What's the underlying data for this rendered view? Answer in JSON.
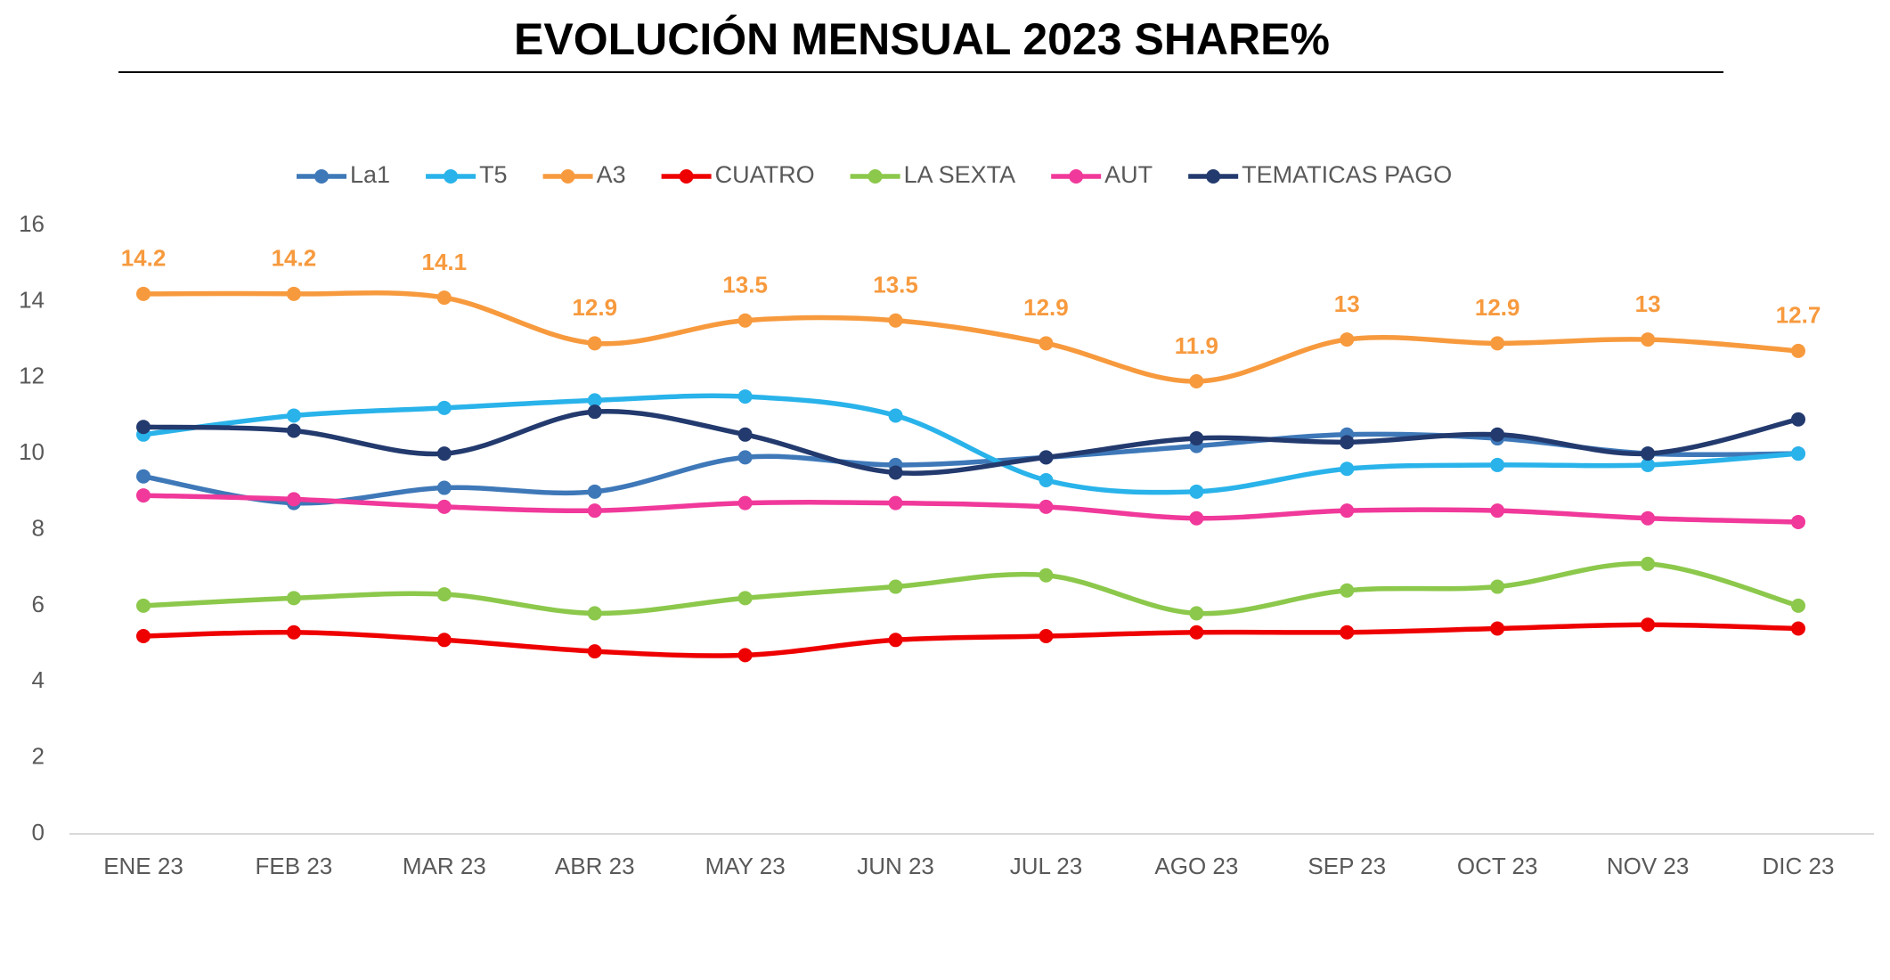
{
  "chart_data": {
    "type": "line",
    "title": "EVOLUCIÓN MENSUAL 2023 SHARE%",
    "categories": [
      "ENE 23",
      "FEB 23",
      "MAR 23",
      "ABR 23",
      "MAY 23",
      "JUN 23",
      "JUL 23",
      "AGO 23",
      "SEP 23",
      "OCT 23",
      "NOV 23",
      "DIC 23"
    ],
    "series": [
      {
        "name": "La1",
        "color": "#3e78b8",
        "values": [
          9.4,
          8.7,
          9.1,
          9.0,
          9.9,
          9.7,
          9.9,
          10.2,
          10.5,
          10.4,
          10.0,
          10.0
        ]
      },
      {
        "name": "T5",
        "color": "#29b3ea",
        "values": [
          10.5,
          11.0,
          11.2,
          11.4,
          11.5,
          11.0,
          9.3,
          9.0,
          9.6,
          9.7,
          9.7,
          10.0
        ]
      },
      {
        "name": "A3",
        "color": "#f79a3e",
        "data_labels": true,
        "values": [
          14.2,
          14.2,
          14.1,
          12.9,
          13.5,
          13.5,
          12.9,
          11.9,
          13,
          12.9,
          13,
          12.7
        ]
      },
      {
        "name": "CUATRO",
        "color": "#ee0000",
        "values": [
          5.2,
          5.3,
          5.1,
          4.8,
          4.7,
          5.1,
          5.2,
          5.3,
          5.3,
          5.4,
          5.5,
          5.4
        ]
      },
      {
        "name": "LA SEXTA",
        "color": "#8cc84b",
        "values": [
          6.0,
          6.2,
          6.3,
          5.8,
          6.2,
          6.5,
          6.8,
          5.8,
          6.4,
          6.5,
          7.1,
          6.0
        ]
      },
      {
        "name": "AUT",
        "color": "#f0399a",
        "values": [
          8.9,
          8.8,
          8.6,
          8.5,
          8.7,
          8.7,
          8.6,
          8.3,
          8.5,
          8.5,
          8.3,
          8.2
        ]
      },
      {
        "name": "TEMATICAS PAGO",
        "color": "#233a6e",
        "values": [
          10.7,
          10.6,
          10.0,
          11.1,
          10.5,
          9.5,
          9.9,
          10.4,
          10.3,
          10.5,
          10.0,
          10.9
        ]
      }
    ],
    "ylim": [
      0,
      16
    ],
    "yticks": [
      0,
      2,
      4,
      6,
      8,
      10,
      12,
      14,
      16
    ],
    "grid": false,
    "smooth": true,
    "legend": "top"
  }
}
